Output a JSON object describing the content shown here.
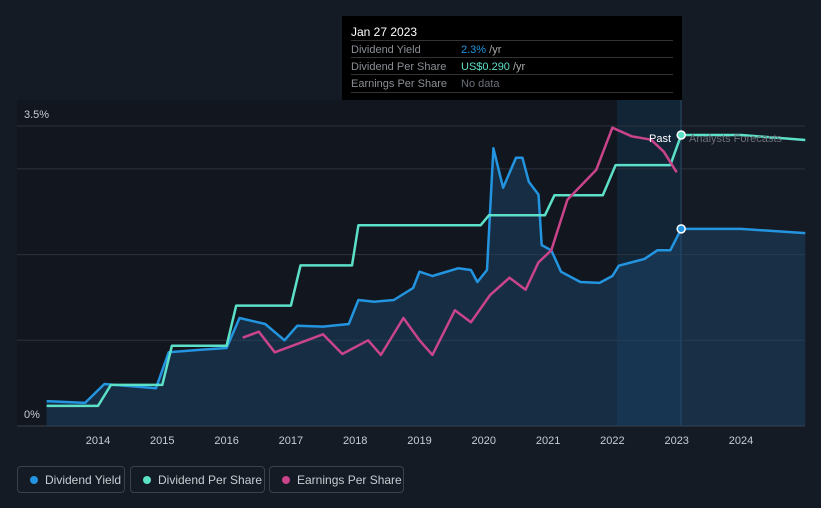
{
  "tooltip": {
    "date": "Jan 27 2023",
    "rows": [
      {
        "label": "Dividend Yield",
        "value": "2.3%",
        "unit": " /yr",
        "color": "#2394df"
      },
      {
        "label": "Dividend Per Share",
        "value": "US$0.290",
        "unit": " /yr",
        "color": "#5ce0c8"
      },
      {
        "label": "Earnings Per Share",
        "value": "No data",
        "unit": "",
        "color": "#6b7079"
      }
    ]
  },
  "labels": {
    "past": "Past",
    "forecast": "Analysts Forecasts"
  },
  "legend": [
    {
      "label": "Dividend Yield",
      "color": "#2394df"
    },
    {
      "label": "Dividend Per Share",
      "color": "#5ce0c8"
    },
    {
      "label": "Earnings Per Share",
      "color": "#c9448a"
    }
  ],
  "chart_data": {
    "type": "line",
    "x_ticks": [
      "2014",
      "2015",
      "2016",
      "2017",
      "2018",
      "2019",
      "2020",
      "2021",
      "2022",
      "2023",
      "2024"
    ],
    "y_ticks": [
      "0%",
      "3.5%"
    ],
    "ylim": [
      0,
      3.5
    ],
    "xlim": [
      2013.0,
      2025.0
    ],
    "past_forecast_boundary": 2023.07,
    "series": [
      {
        "name": "Dividend Yield",
        "unit": "%",
        "color": "#2394df",
        "points": [
          [
            2013.2,
            0.29
          ],
          [
            2013.8,
            0.27
          ],
          [
            2014.1,
            0.49
          ],
          [
            2014.9,
            0.44
          ],
          [
            2015.1,
            0.86
          ],
          [
            2015.6,
            0.89
          ],
          [
            2016,
            0.91
          ],
          [
            2016.2,
            1.26
          ],
          [
            2016.6,
            1.19
          ],
          [
            2016.9,
            1.0
          ],
          [
            2017.1,
            1.17
          ],
          [
            2017.5,
            1.16
          ],
          [
            2017.9,
            1.19
          ],
          [
            2018.05,
            1.47
          ],
          [
            2018.3,
            1.45
          ],
          [
            2018.6,
            1.47
          ],
          [
            2018.9,
            1.61
          ],
          [
            2019,
            1.8
          ],
          [
            2019.2,
            1.75
          ],
          [
            2019.6,
            1.84
          ],
          [
            2019.8,
            1.82
          ],
          [
            2019.9,
            1.68
          ],
          [
            2020.05,
            1.82
          ],
          [
            2020.15,
            3.24
          ],
          [
            2020.3,
            2.78
          ],
          [
            2020.5,
            3.13
          ],
          [
            2020.6,
            3.13
          ],
          [
            2020.7,
            2.85
          ],
          [
            2020.85,
            2.7
          ],
          [
            2020.9,
            2.11
          ],
          [
            2021.05,
            2.05
          ],
          [
            2021.2,
            1.8
          ],
          [
            2021.5,
            1.68
          ],
          [
            2021.8,
            1.67
          ],
          [
            2022,
            1.75
          ],
          [
            2022.1,
            1.87
          ],
          [
            2022.5,
            1.95
          ],
          [
            2022.7,
            2.05
          ],
          [
            2022.9,
            2.05
          ],
          [
            2023.07,
            2.3
          ],
          [
            2024,
            2.3
          ],
          [
            2025,
            2.25
          ]
        ]
      },
      {
        "name": "Dividend Per Share",
        "unit": "US$",
        "color": "#5ce0c8",
        "ymax": 0.29,
        "points": [
          [
            2013.2,
            0.02
          ],
          [
            2014,
            0.02
          ],
          [
            2014.2,
            0.041
          ],
          [
            2015,
            0.041
          ],
          [
            2015.15,
            0.08
          ],
          [
            2016,
            0.08
          ],
          [
            2016.15,
            0.12
          ],
          [
            2017,
            0.12
          ],
          [
            2017.15,
            0.16
          ],
          [
            2017.95,
            0.16
          ],
          [
            2018.05,
            0.2
          ],
          [
            2019.95,
            0.2
          ],
          [
            2020.08,
            0.21
          ],
          [
            2020.95,
            0.21
          ],
          [
            2021.1,
            0.23
          ],
          [
            2021.85,
            0.23
          ],
          [
            2022.05,
            0.26
          ],
          [
            2022.9,
            0.26
          ],
          [
            2023.07,
            0.29
          ],
          [
            2024,
            0.29
          ],
          [
            2025,
            0.285
          ]
        ]
      },
      {
        "name": "Earnings Per Share",
        "unit": "index",
        "color": "#c9448a",
        "points": [
          [
            2016.25,
            1.03
          ],
          [
            2016.5,
            1.1
          ],
          [
            2016.75,
            0.86
          ],
          [
            2017,
            0.93
          ],
          [
            2017.5,
            1.07
          ],
          [
            2017.8,
            0.84
          ],
          [
            2018.2,
            1.0
          ],
          [
            2018.4,
            0.83
          ],
          [
            2018.75,
            1.26
          ],
          [
            2019,
            1.0
          ],
          [
            2019.2,
            0.83
          ],
          [
            2019.55,
            1.35
          ],
          [
            2019.8,
            1.21
          ],
          [
            2020.1,
            1.53
          ],
          [
            2020.4,
            1.73
          ],
          [
            2020.65,
            1.59
          ],
          [
            2020.85,
            1.91
          ],
          [
            2021.05,
            2.05
          ],
          [
            2021.3,
            2.64
          ],
          [
            2021.75,
            2.99
          ],
          [
            2022,
            3.48
          ],
          [
            2022.3,
            3.38
          ],
          [
            2022.6,
            3.34
          ],
          [
            2022.8,
            3.2
          ],
          [
            2023,
            2.96
          ]
        ]
      }
    ]
  }
}
